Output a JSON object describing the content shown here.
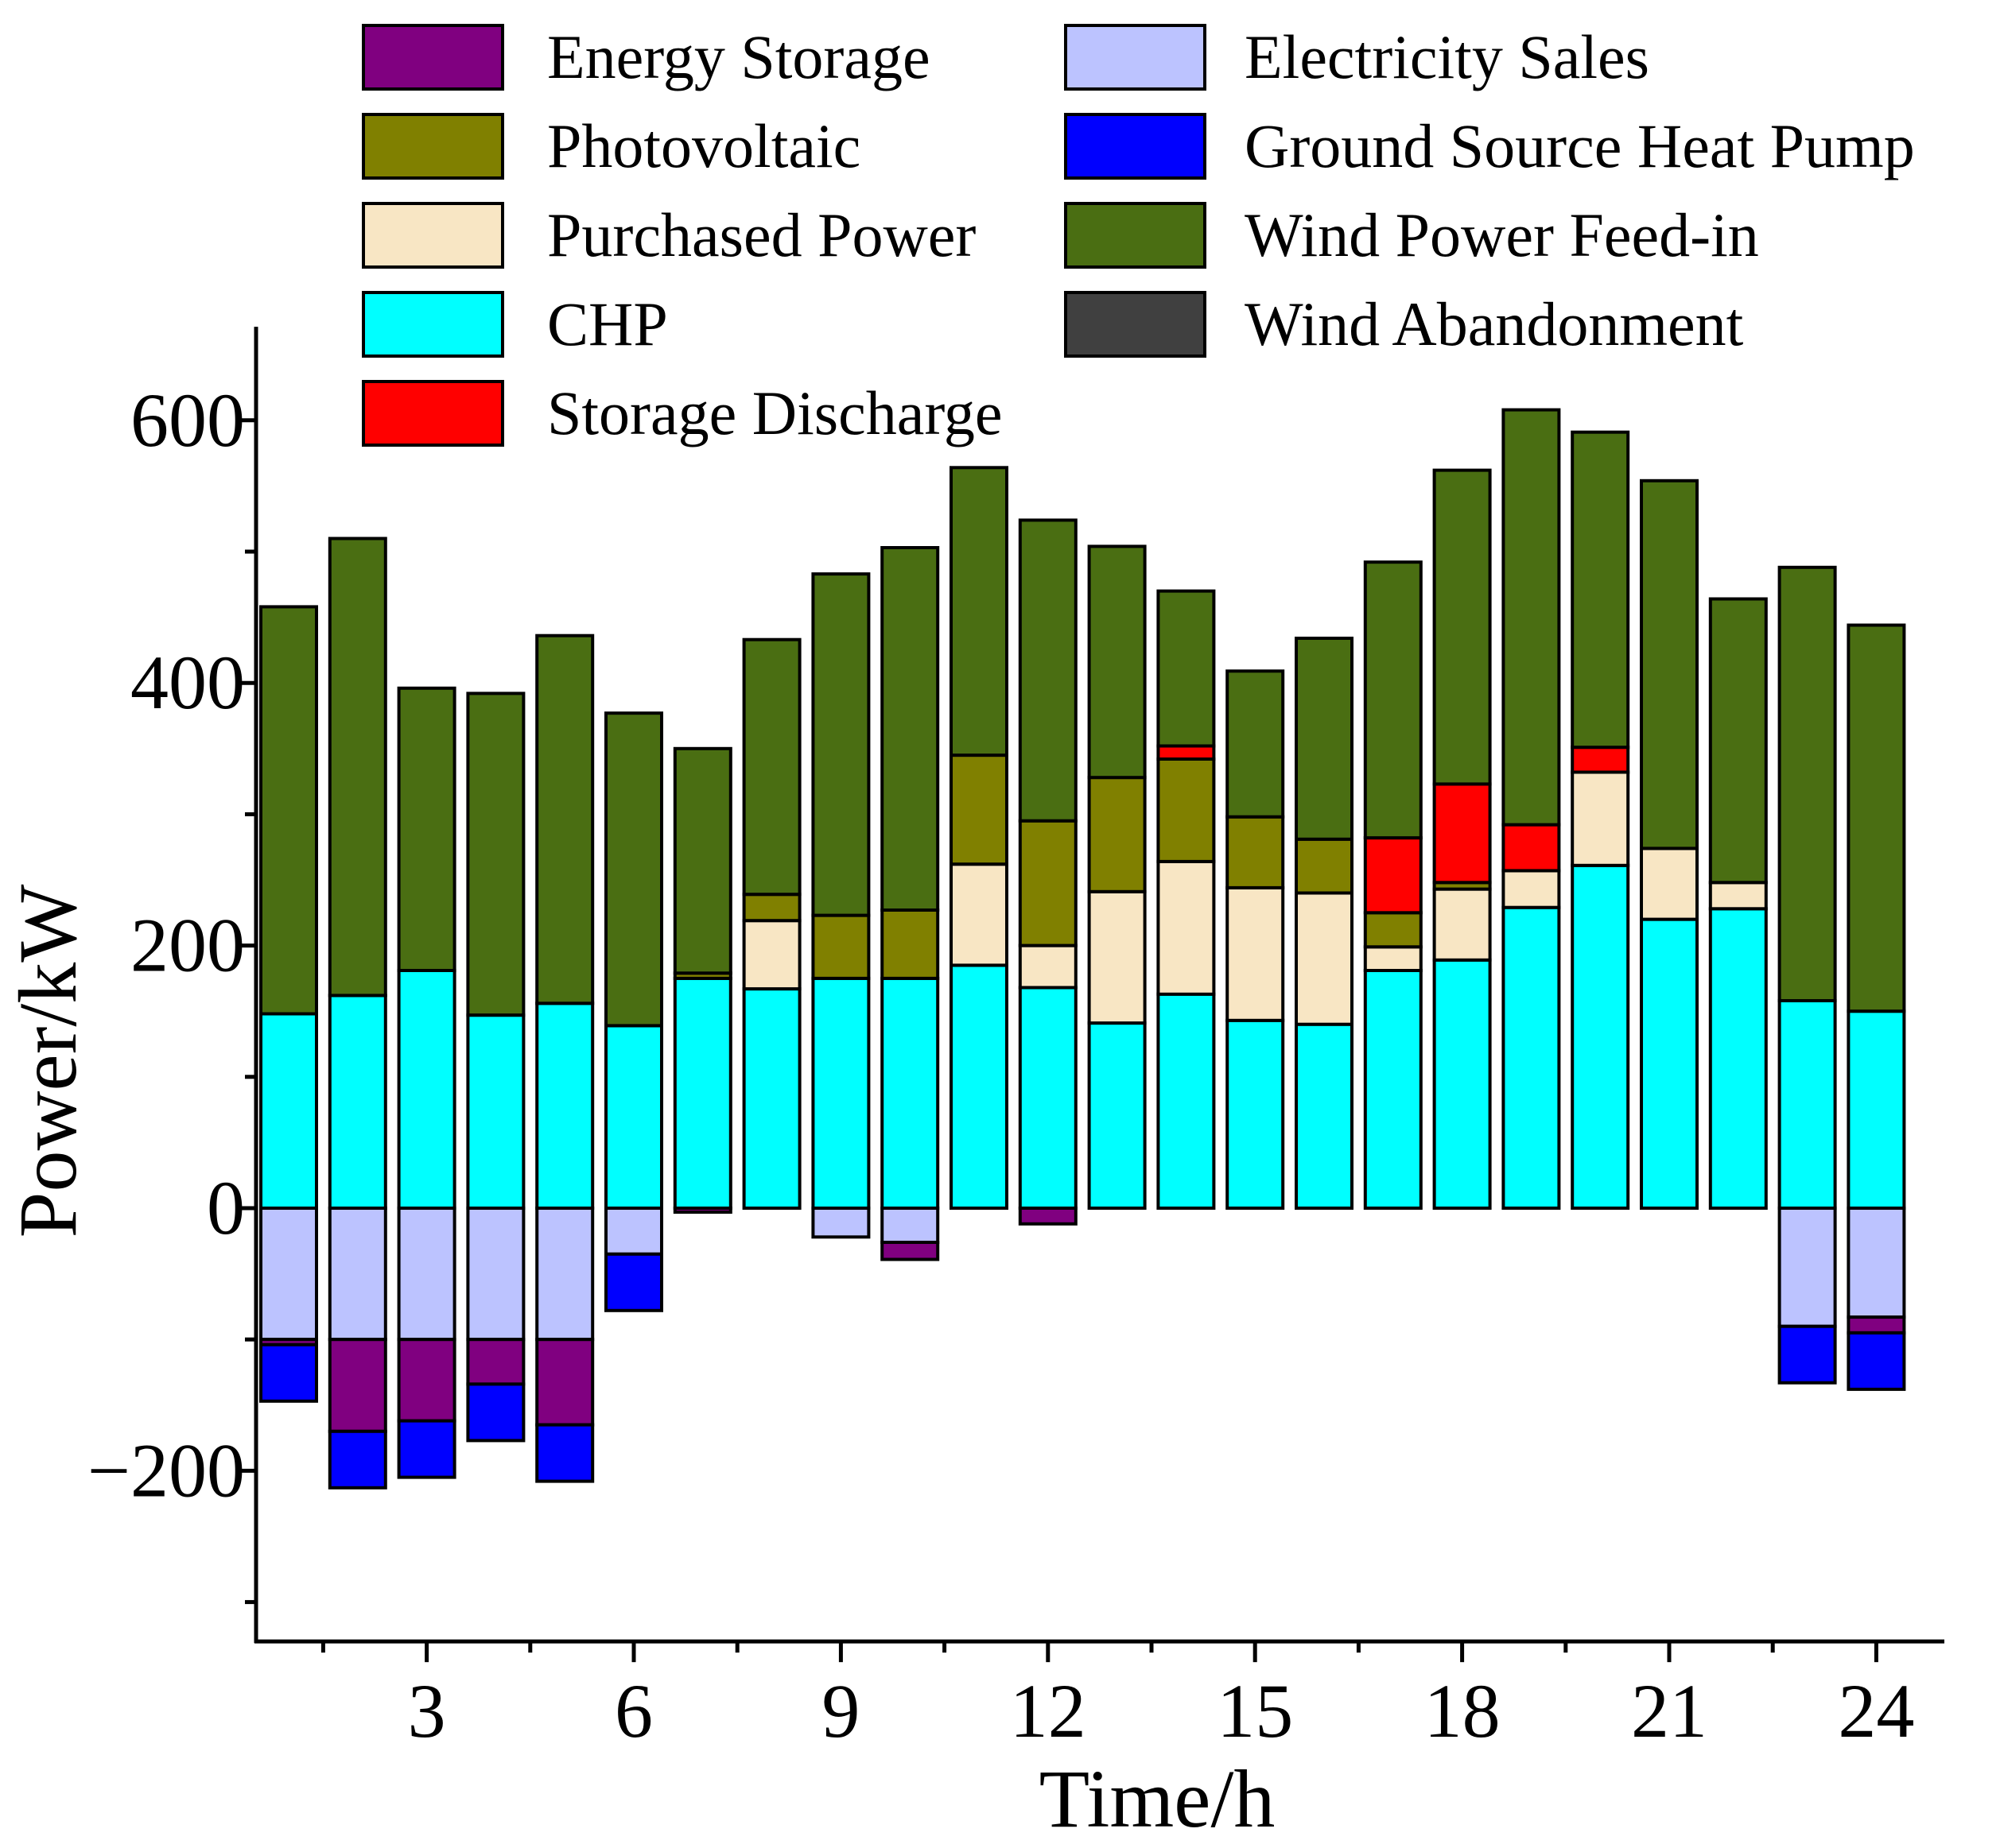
{
  "chart_data": {
    "type": "bar",
    "stacked": true,
    "xlabel": "Time/h",
    "ylabel": "Power/kW",
    "ylim": [
      -330,
      670
    ],
    "yticks": [
      -200,
      0,
      200,
      400,
      600
    ],
    "x": [
      1,
      2,
      3,
      4,
      5,
      6,
      7,
      8,
      9,
      10,
      11,
      12,
      13,
      14,
      15,
      16,
      17,
      18,
      19,
      20,
      21,
      22,
      23,
      24
    ],
    "xtick_labels": [
      "3",
      "6",
      "9",
      "12",
      "15",
      "18",
      "21",
      "24"
    ],
    "legend_position": "top",
    "legend": [
      {
        "key": "energy_storage",
        "label": "Energy Storage",
        "color": "#800080"
      },
      {
        "key": "photovoltaic",
        "label": "Photovoltaic",
        "color": "#808000"
      },
      {
        "key": "purchased_power",
        "label": "Purchased Power",
        "color": "#F8E6C4"
      },
      {
        "key": "chp",
        "label": "CHP",
        "color": "#00FFFF"
      },
      {
        "key": "storage_discharge",
        "label": "Storage Discharge",
        "color": "#FF0000"
      },
      {
        "key": "electricity_sales",
        "label": "Electricity Sales",
        "color": "#BCC3FF"
      },
      {
        "key": "gshp",
        "label": "Ground Source Heat Pump",
        "color": "#0000FF"
      },
      {
        "key": "wind_feed_in",
        "label": "Wind Power Feed-in",
        "color": "#4A6E12"
      },
      {
        "key": "wind_abandonment",
        "label": "Wind Abandonment",
        "color": "#404040"
      }
    ],
    "positive_stack_order": [
      "chp",
      "purchased_power",
      "photovoltaic",
      "storage_discharge",
      "wind_feed_in"
    ],
    "negative_stack_order": [
      "electricity_sales",
      "energy_storage",
      "gshp"
    ],
    "series": {
      "chp": [
        148,
        162,
        181,
        147,
        156,
        139,
        175,
        167,
        175,
        175,
        185,
        168,
        141,
        163,
        143,
        140,
        181,
        189,
        229,
        261,
        220,
        228,
        158,
        150
      ],
      "purchased_power": [
        0,
        0,
        0,
        0,
        0,
        0,
        0,
        52,
        0,
        0,
        77,
        32,
        100,
        101,
        101,
        100,
        18,
        54,
        28,
        71,
        54,
        20,
        0,
        0
      ],
      "photovoltaic": [
        0,
        0,
        0,
        0,
        0,
        0,
        4,
        20,
        48,
        52,
        83,
        95,
        87,
        78,
        54,
        41,
        26,
        5,
        0,
        0,
        0,
        0,
        0,
        0
      ],
      "storage_discharge": [
        0,
        0,
        0,
        0,
        0,
        0,
        0,
        0,
        0,
        0,
        0,
        0,
        0,
        10,
        0,
        0,
        57,
        75,
        35,
        19,
        0,
        0,
        0,
        0
      ],
      "wind_feed_in": [
        310,
        348,
        215,
        245,
        280,
        238,
        171,
        194,
        260,
        276,
        219,
        229,
        176,
        118,
        111,
        153,
        210,
        239,
        316,
        240,
        280,
        216,
        330,
        294
      ],
      "electricity_sales": [
        -100,
        -100,
        -100,
        -100,
        -100,
        -35,
        0,
        0,
        -22,
        -26,
        0,
        0,
        0,
        0,
        0,
        0,
        0,
        0,
        0,
        0,
        0,
        0,
        -90,
        -83
      ],
      "energy_storage": [
        -4,
        -70,
        -62,
        -34,
        -65,
        0,
        -3,
        0,
        0,
        -13,
        0,
        -12,
        0,
        0,
        0,
        0,
        0,
        0,
        0,
        0,
        0,
        0,
        0,
        -12
      ],
      "gshp": [
        -43,
        -43,
        -43,
        -43,
        -43,
        -43,
        0,
        0,
        0,
        0,
        0,
        0,
        0,
        0,
        0,
        0,
        0,
        0,
        0,
        0,
        0,
        0,
        -43,
        -43
      ],
      "wind_abandonment": [
        0,
        0,
        0,
        0,
        0,
        0,
        0,
        0,
        0,
        0,
        0,
        0,
        0,
        0,
        0,
        0,
        0,
        0,
        0,
        0,
        0,
        0,
        0,
        0
      ]
    }
  }
}
